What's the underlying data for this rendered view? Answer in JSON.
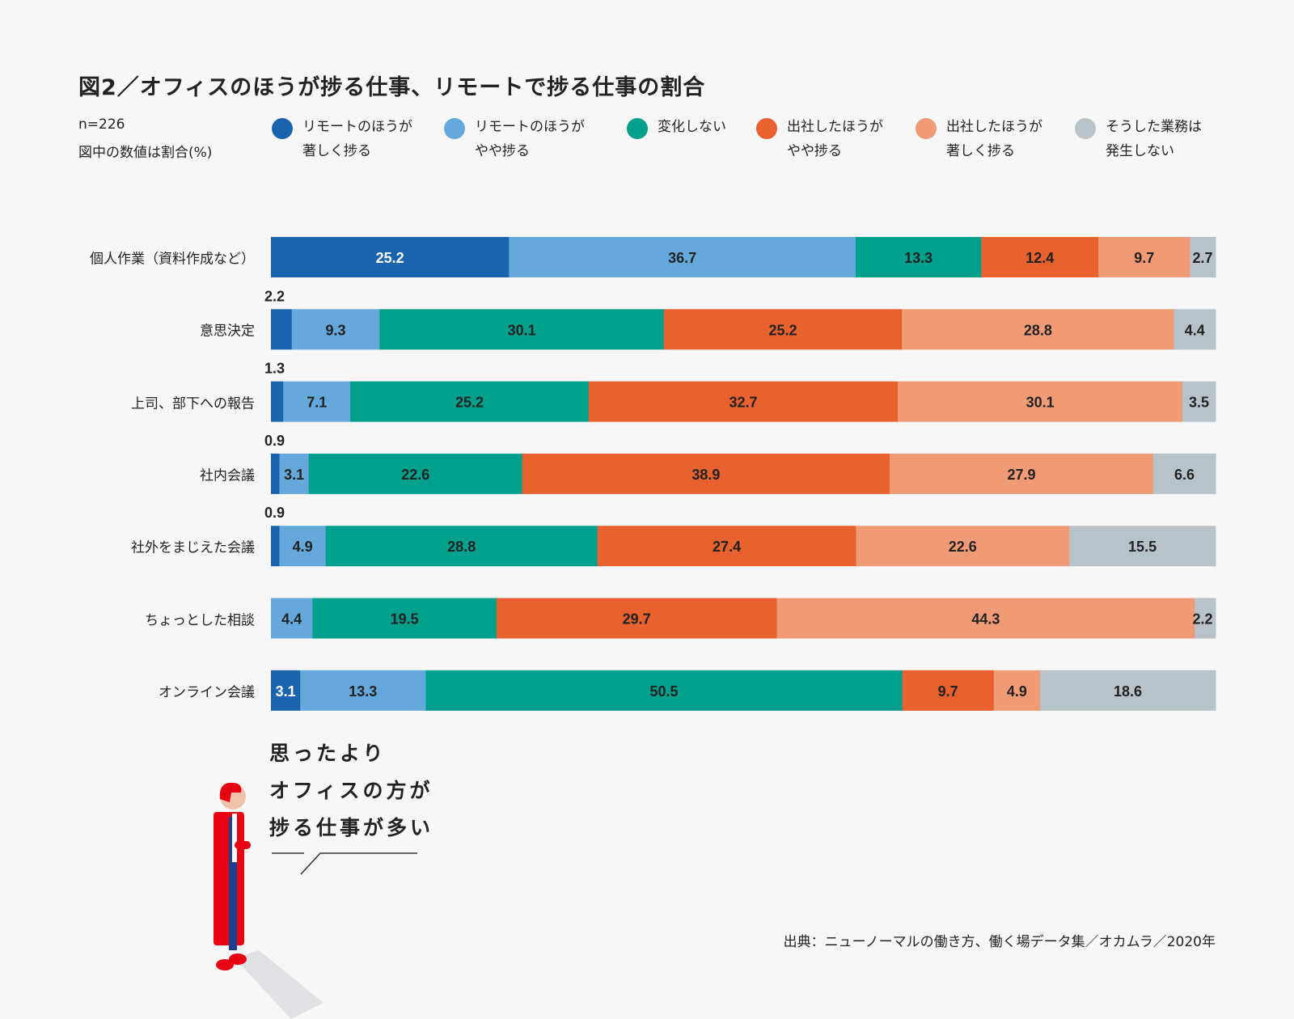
{
  "chart_data": {
    "type": "bar",
    "orientation": "horizontal",
    "stacked": true,
    "title": "図2／オフィスのほうが捗る仕事、リモートで捗る仕事の割合",
    "notes": [
      "n=226",
      "図中の数値は割合(%)"
    ],
    "legend_placement": "top",
    "grid": false,
    "xlim": [
      0,
      100
    ],
    "categories": [
      "個人作業（資料作成など）",
      "意思決定",
      "上司、部下への報告",
      "社内会議",
      "社外をまじえた会議",
      "ちょっとした相談",
      "オンライン会議"
    ],
    "series": [
      {
        "name": [
          "リモートのほうが",
          "著しく捗る"
        ],
        "color": "#1a64ae",
        "label_color": "#ffffff",
        "values": [
          25.2,
          2.2,
          1.3,
          0.9,
          0.9,
          null,
          3.1
        ]
      },
      {
        "name": [
          "リモートのほうが",
          "やや捗る"
        ],
        "color": "#64a8dc",
        "label_color": "#222222",
        "values": [
          36.7,
          9.3,
          7.1,
          3.1,
          4.9,
          4.4,
          13.3
        ]
      },
      {
        "name": [
          "変化しない"
        ],
        "color": "#00a08c",
        "label_color": "#222222",
        "values": [
          13.3,
          30.1,
          25.2,
          22.6,
          28.8,
          19.5,
          50.5
        ]
      },
      {
        "name": [
          "出社したほうが",
          "やや捗る"
        ],
        "color": "#e8612f",
        "label_color": "#222222",
        "values": [
          12.4,
          25.2,
          32.7,
          38.9,
          27.4,
          29.7,
          9.7
        ]
      },
      {
        "name": [
          "出社したほうが",
          "著しく捗る"
        ],
        "color": "#f09b76",
        "label_color": "#222222",
        "values": [
          9.7,
          28.8,
          30.1,
          27.9,
          22.6,
          44.3,
          4.9
        ]
      },
      {
        "name": [
          "そうした業務は",
          "発生しない"
        ],
        "color": "#b8c3c9",
        "label_color": "#222222",
        "values": [
          2.7,
          4.4,
          3.5,
          6.6,
          15.5,
          2.2,
          18.6
        ]
      }
    ]
  },
  "speech": [
    "思ったより",
    "オフィスの方が",
    "捗る仕事が多い"
  ],
  "source": "出典：ニューノーマルの働き方、働く場データ集／オカムラ／2020年",
  "illustration_colors": {
    "coat": "#e60012",
    "trousers": "#1d3f8f"
  }
}
